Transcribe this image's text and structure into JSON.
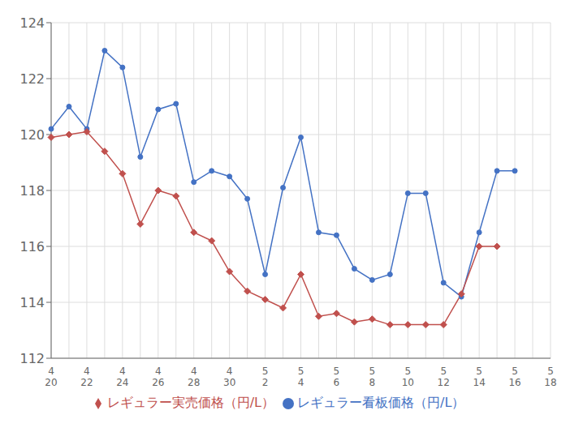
{
  "chart_data": {
    "type": "line",
    "categories": [
      "4\n20",
      null,
      "4\n22",
      null,
      "4\n24",
      null,
      "4\n26",
      null,
      "4\n28",
      null,
      "4\n30",
      null,
      "5\n2",
      null,
      "5\n4",
      null,
      "5\n6",
      null,
      "5\n8",
      null,
      "5\n10",
      null,
      "5\n12",
      null,
      "5\n14",
      null,
      "5\n16",
      null,
      "5\n18"
    ],
    "series": [
      {
        "name": "レギュラー看板価格（円/L）",
        "color": "#4472C4",
        "marker": "circle",
        "values": [
          120.2,
          121.0,
          120.2,
          123.0,
          122.4,
          119.2,
          120.9,
          121.1,
          118.3,
          118.7,
          118.5,
          117.7,
          115.0,
          118.1,
          119.9,
          116.5,
          116.4,
          115.2,
          114.8,
          115.0,
          117.9,
          117.9,
          114.7,
          114.2,
          116.5,
          118.7,
          118.7,
          null,
          null
        ]
      },
      {
        "name": "レギュラー実売価格（円/L）",
        "color": "#C0504D",
        "marker": "diamond",
        "values": [
          119.9,
          120.0,
          120.1,
          119.4,
          118.6,
          116.8,
          118.0,
          117.8,
          116.5,
          116.2,
          115.1,
          114.4,
          114.1,
          113.8,
          115.0,
          113.5,
          113.6,
          113.3,
          113.4,
          113.2,
          113.2,
          113.2,
          113.2,
          114.3,
          116.0,
          116.0,
          null,
          null,
          null
        ]
      }
    ],
    "ylim": [
      112,
      124
    ],
    "yticks": [
      112,
      114,
      116,
      118,
      120,
      122,
      124
    ],
    "grid": true,
    "legend": "bottom"
  }
}
